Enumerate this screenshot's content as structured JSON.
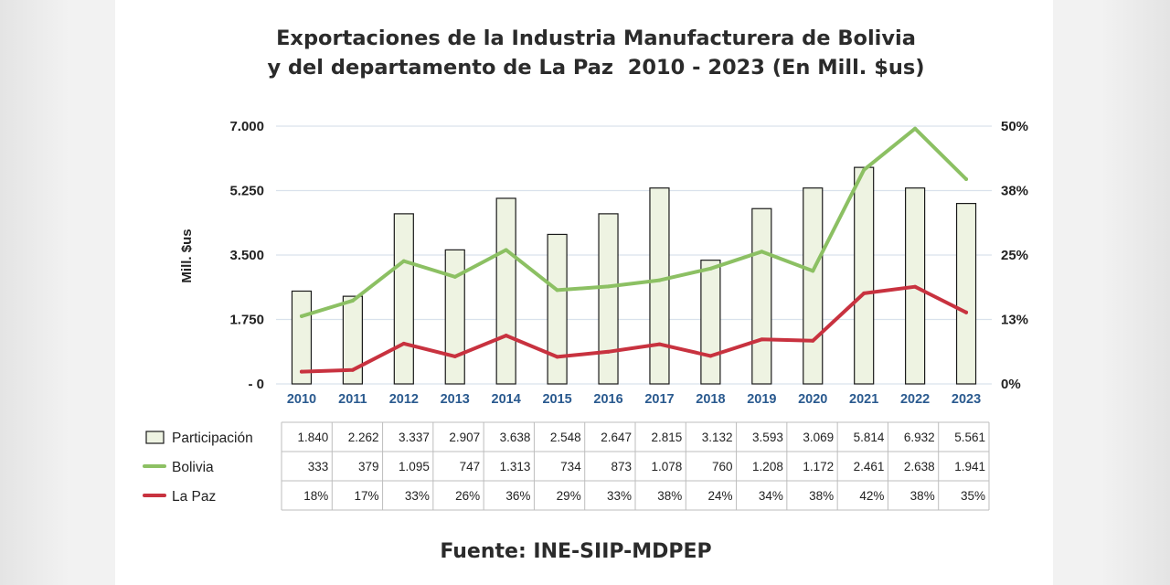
{
  "title_line1": "Exportaciones de la Industria Manufacturera de Bolivia",
  "title_line2": "y del departamento de La Paz  2010 - 2023 (En Mill. $us)",
  "source": "Fuente: INE-SIIP-MDPEP",
  "colors": {
    "bar_fill": "#eef3e2",
    "bar_stroke": "#1a1a1a",
    "bolivia": "#8cc063",
    "lapaz": "#c8323f",
    "grid": "#d9e2ec",
    "xtick": "#2a5a8f"
  },
  "chart_data": {
    "type": "bar+line",
    "ylabel": "Mill. $us",
    "y_left_ticks": [
      "7.000",
      "5.250",
      "3.500",
      "1.750",
      "- 0"
    ],
    "y_left_range": [
      0,
      7000
    ],
    "y_right_ticks": [
      "50%",
      "38%",
      "25%",
      "13%",
      "0%"
    ],
    "y_right_range": [
      0,
      50
    ],
    "grid": true,
    "categories": [
      "2010",
      "2011",
      "2012",
      "2013",
      "2014",
      "2015",
      "2016",
      "2017",
      "2018",
      "2019",
      "2020",
      "2021",
      "2022",
      "2023"
    ],
    "series": [
      {
        "name": "Participación",
        "type": "bar",
        "axis": "right",
        "values": [
          18,
          17,
          33,
          26,
          36,
          29,
          33,
          38,
          24,
          34,
          38,
          42,
          38,
          35
        ],
        "labels": [
          "18%",
          "17%",
          "33%",
          "26%",
          "36%",
          "29%",
          "33%",
          "38%",
          "24%",
          "34%",
          "38%",
          "42%",
          "38%",
          "35%"
        ]
      },
      {
        "name": "Bolivia",
        "type": "line",
        "axis": "left",
        "values": [
          1840,
          2262,
          3337,
          2907,
          3638,
          2548,
          2647,
          2815,
          3132,
          3593,
          3069,
          5814,
          6932,
          5561
        ],
        "labels": [
          "1.840",
          "2.262",
          "3.337",
          "2.907",
          "3.638",
          "2.548",
          "2.647",
          "2.815",
          "3.132",
          "3.593",
          "3.069",
          "5.814",
          "6.932",
          "5.561"
        ]
      },
      {
        "name": "La Paz",
        "type": "line",
        "axis": "left",
        "values": [
          333,
          379,
          1095,
          747,
          1313,
          734,
          873,
          1078,
          760,
          1208,
          1172,
          2461,
          2638,
          1941
        ],
        "labels": [
          "333",
          "379",
          "1.095",
          "747",
          "1.313",
          "734",
          "873",
          "1.078",
          "760",
          "1.208",
          "1.172",
          "2.461",
          "2.638",
          "1.941"
        ]
      }
    ]
  }
}
